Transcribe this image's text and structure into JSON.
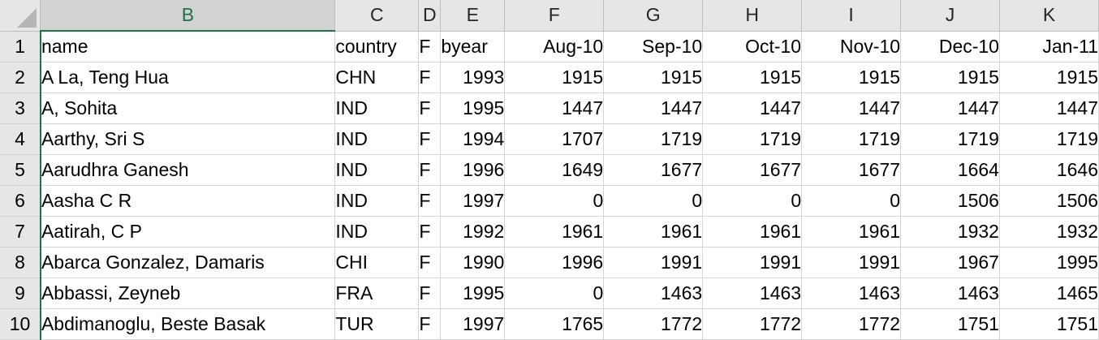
{
  "columns": [
    "B",
    "C",
    "D",
    "E",
    "F",
    "G",
    "H",
    "I",
    "J",
    "K"
  ],
  "rows": [
    {
      "num": "1",
      "cells": [
        "name",
        "country",
        "F",
        "byear",
        "Aug-10",
        "Sep-10",
        "Oct-10",
        "Nov-10",
        "Dec-10",
        "Jan-11"
      ]
    },
    {
      "num": "2",
      "cells": [
        "A La, Teng Hua",
        "CHN",
        "F",
        "1993",
        "1915",
        "1915",
        "1915",
        "1915",
        "1915",
        "1915"
      ]
    },
    {
      "num": "3",
      "cells": [
        "A, Sohita",
        "IND",
        "F",
        "1995",
        "1447",
        "1447",
        "1447",
        "1447",
        "1447",
        "1447"
      ]
    },
    {
      "num": "4",
      "cells": [
        "Aarthy, Sri S",
        "IND",
        "F",
        "1994",
        "1707",
        "1719",
        "1719",
        "1719",
        "1719",
        "1719"
      ]
    },
    {
      "num": "5",
      "cells": [
        "Aarudhra Ganesh",
        "IND",
        "F",
        "1996",
        "1649",
        "1677",
        "1677",
        "1677",
        "1664",
        "1646"
      ]
    },
    {
      "num": "6",
      "cells": [
        "Aasha C R",
        "IND",
        "F",
        "1997",
        "0",
        "0",
        "0",
        "0",
        "1506",
        "1506"
      ]
    },
    {
      "num": "7",
      "cells": [
        "Aatirah, C P",
        "IND",
        "F",
        "1992",
        "1961",
        "1961",
        "1961",
        "1961",
        "1932",
        "1932"
      ]
    },
    {
      "num": "8",
      "cells": [
        "Abarca Gonzalez, Damaris",
        "CHI",
        "F",
        "1990",
        "1996",
        "1991",
        "1991",
        "1991",
        "1967",
        "1995"
      ]
    },
    {
      "num": "9",
      "cells": [
        "Abbassi, Zeyneb",
        "FRA",
        "F",
        "1995",
        "0",
        "1463",
        "1463",
        "1463",
        "1463",
        "1465"
      ]
    },
    {
      "num": "10",
      "cells": [
        "Abdimanoglu, Beste Basak",
        "TUR",
        "F",
        "1997",
        "1765",
        "1772",
        "1772",
        "1772",
        "1751",
        "1751"
      ]
    }
  ],
  "selected_column": "B",
  "accent_color": "#217346"
}
